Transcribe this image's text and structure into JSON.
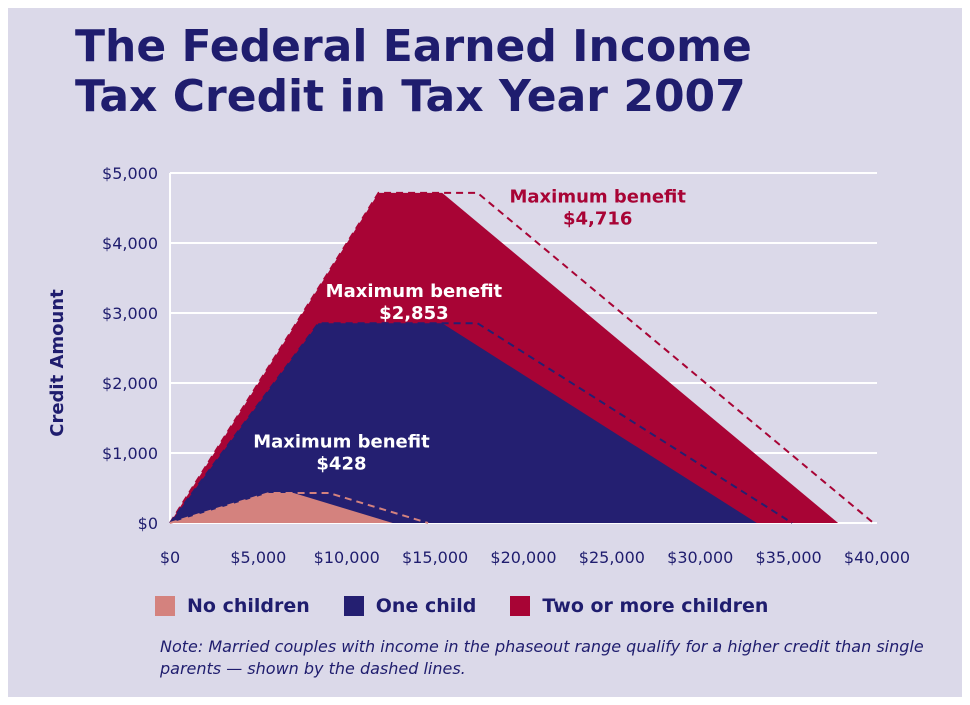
{
  "title_line1": "The Federal Earned Income",
  "title_line2": "Tax Credit in Tax Year 2007",
  "note": "Note: Married couples with income in the phaseout range qualify for a higher credit than single parents — shown by the dashed lines.",
  "colors": {
    "background": "#dbd9e9",
    "title": "#1f1d6e",
    "no_children": "#d4827e",
    "one_child": "#241f71",
    "two_or_more": "#a80435",
    "dash_no_children": "#d4827e",
    "dash_one_child": "#241f71",
    "dash_two_or_more": "#a80435",
    "annotation_dark": "#a80435",
    "annotation_light": "#ffffff"
  },
  "chart_data": {
    "type": "area",
    "title": "The Federal Earned Income Tax Credit in Tax Year 2007",
    "ylabel": "Credit Amount",
    "xlabel": "",
    "xlim": [
      0,
      40000
    ],
    "ylim": [
      0,
      5000
    ],
    "x_ticks": [
      "$0",
      "$5,000",
      "$10,000",
      "$15,000",
      "$20,000",
      "$25,000",
      "$30,000",
      "$35,000",
      "$40,000"
    ],
    "y_ticks": [
      "$0",
      "$1,000",
      "$2,000",
      "$3,000",
      "$4,000",
      "$5,000"
    ],
    "grid": "horizontal",
    "legend_position": "bottom",
    "series": [
      {
        "key": "two_or_more",
        "name": "Two or more children",
        "x": [
          0,
          11800,
          15400,
          37800
        ],
        "y": [
          0,
          4716,
          4716,
          0
        ],
        "married_x": [
          0,
          11800,
          17400,
          39800
        ],
        "married_y": [
          0,
          4716,
          4716,
          0
        ]
      },
      {
        "key": "one_child",
        "name": "One child",
        "x": [
          0,
          8400,
          15400,
          33200
        ],
        "y": [
          0,
          2853,
          2853,
          0
        ],
        "married_x": [
          0,
          8400,
          17400,
          35200
        ],
        "married_y": [
          0,
          2853,
          2853,
          0
        ]
      },
      {
        "key": "no_children",
        "name": "No children",
        "x": [
          0,
          5600,
          7000,
          12600
        ],
        "y": [
          0,
          428,
          428,
          0
        ],
        "married_x": [
          0,
          5600,
          9000,
          14600
        ],
        "married_y": [
          0,
          428,
          428,
          0
        ]
      }
    ],
    "annotations": [
      {
        "label": "Maximum benefit",
        "value": "$4,716",
        "x": 24200,
        "y": 4580,
        "style": "dark"
      },
      {
        "label": "Maximum benefit",
        "value": "$2,853",
        "x": 13800,
        "y": 3230,
        "style": "light"
      },
      {
        "label": "Maximum benefit",
        "value": "$428",
        "x": 9700,
        "y": 1080,
        "style": "light"
      }
    ],
    "legend": [
      {
        "key": "no_children",
        "label": "No children"
      },
      {
        "key": "one_child",
        "label": "One child"
      },
      {
        "key": "two_or_more",
        "label": "Two or more children"
      }
    ]
  }
}
